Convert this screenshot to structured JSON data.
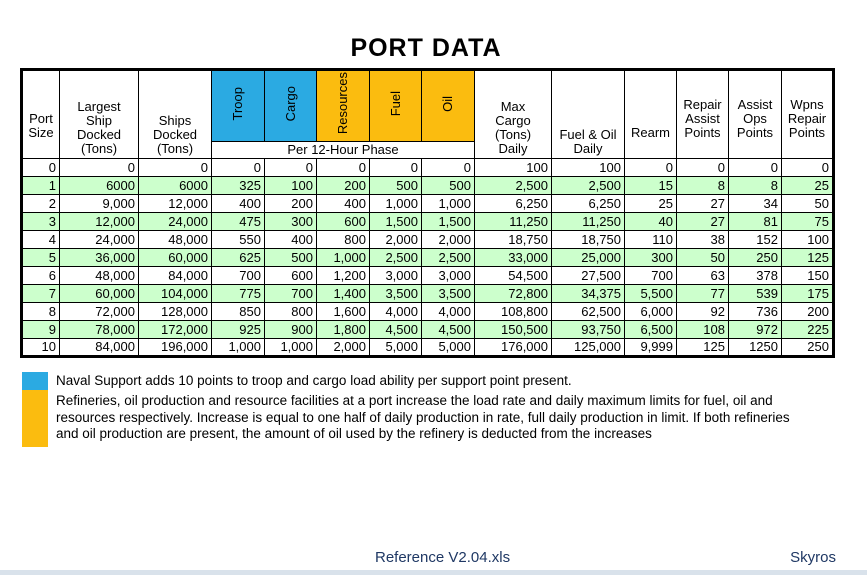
{
  "title": "PORT DATA",
  "colors": {
    "troop_cargo_header": "#2BAAE2",
    "resource_fuel_oil_header": "#FBBC0F",
    "alt_row_green": "#CCFFCC",
    "footer_text": "#1F3864",
    "bottom_strip": "#D9E2EB",
    "border": "#000000"
  },
  "table": {
    "rotated_group_label": "Per 12-Hour Phase",
    "columns": [
      {
        "key": "port_size",
        "label": "Port\nSize"
      },
      {
        "key": "largest_ship",
        "label": "Largest\nShip\nDocked\n(Tons)"
      },
      {
        "key": "ships_docked",
        "label": "Ships\nDocked\n(Tons)"
      },
      {
        "key": "troop",
        "label": "Troop"
      },
      {
        "key": "cargo",
        "label": "Cargo"
      },
      {
        "key": "resources",
        "label": "Resources"
      },
      {
        "key": "fuel",
        "label": "Fuel"
      },
      {
        "key": "oil",
        "label": "Oil"
      },
      {
        "key": "max_cargo",
        "label": "Max\nCargo\n(Tons)\nDaily"
      },
      {
        "key": "fuel_oil",
        "label": "Fuel & Oil\nDaily"
      },
      {
        "key": "rearm",
        "label": "Rearm"
      },
      {
        "key": "repair_assist",
        "label": "Repair\nAssist\nPoints"
      },
      {
        "key": "assist_ops",
        "label": "Assist\nOps\nPoints"
      },
      {
        "key": "wpns_repair",
        "label": "Wpns\nRepair\nPoints"
      }
    ],
    "rows": [
      [
        "0",
        "0",
        "0",
        "0",
        "0",
        "0",
        "0",
        "0",
        "100",
        "100",
        "0",
        "0",
        "0",
        "0"
      ],
      [
        "1",
        "6000",
        "6000",
        "325",
        "100",
        "200",
        "500",
        "500",
        "2,500",
        "2,500",
        "15",
        "8",
        "8",
        "25"
      ],
      [
        "2",
        "9,000",
        "12,000",
        "400",
        "200",
        "400",
        "1,000",
        "1,000",
        "6,250",
        "6,250",
        "25",
        "27",
        "34",
        "50"
      ],
      [
        "3",
        "12,000",
        "24,000",
        "475",
        "300",
        "600",
        "1,500",
        "1,500",
        "11,250",
        "11,250",
        "40",
        "27",
        "81",
        "75"
      ],
      [
        "4",
        "24,000",
        "48,000",
        "550",
        "400",
        "800",
        "2,000",
        "2,000",
        "18,750",
        "18,750",
        "110",
        "38",
        "152",
        "100"
      ],
      [
        "5",
        "36,000",
        "60,000",
        "625",
        "500",
        "1,000",
        "2,500",
        "2,500",
        "33,000",
        "25,000",
        "300",
        "50",
        "250",
        "125"
      ],
      [
        "6",
        "48,000",
        "84,000",
        "700",
        "600",
        "1,200",
        "3,000",
        "3,000",
        "54,500",
        "27,500",
        "700",
        "63",
        "378",
        "150"
      ],
      [
        "7",
        "60,000",
        "104,000",
        "775",
        "700",
        "1,400",
        "3,500",
        "3,500",
        "72,800",
        "34,375",
        "5,500",
        "77",
        "539",
        "175"
      ],
      [
        "8",
        "72,000",
        "128,000",
        "850",
        "800",
        "1,600",
        "4,000",
        "4,000",
        "108,800",
        "62,500",
        "6,000",
        "92",
        "736",
        "200"
      ],
      [
        "9",
        "78,000",
        "172,000",
        "925",
        "900",
        "1,800",
        "4,500",
        "4,500",
        "150,500",
        "93,750",
        "6,500",
        "108",
        "972",
        "225"
      ],
      [
        "10",
        "84,000",
        "196,000",
        "1,000",
        "1,000",
        "2,000",
        "5,000",
        "5,000",
        "176,000",
        "125,000",
        "9,999",
        "125",
        "1250",
        "250"
      ]
    ]
  },
  "legend": [
    {
      "swatch_color": "#2BAAE2",
      "text": "Naval Support adds 10 points to troop and cargo load ability per support point present."
    },
    {
      "swatch_color": "#FBBC0F",
      "text": "Refineries, oil production and resource facilities at a port increase the load rate and daily maximum limits for fuel, oil and resources respectively. Increase is equal to one half of daily production in rate, full daily production in limit. If both refineries and oil production are present, the amount of oil used by the refinery is deducted from the increases"
    }
  ],
  "footer": {
    "reference": "Reference V2.04.xls",
    "author": "Skyros"
  }
}
